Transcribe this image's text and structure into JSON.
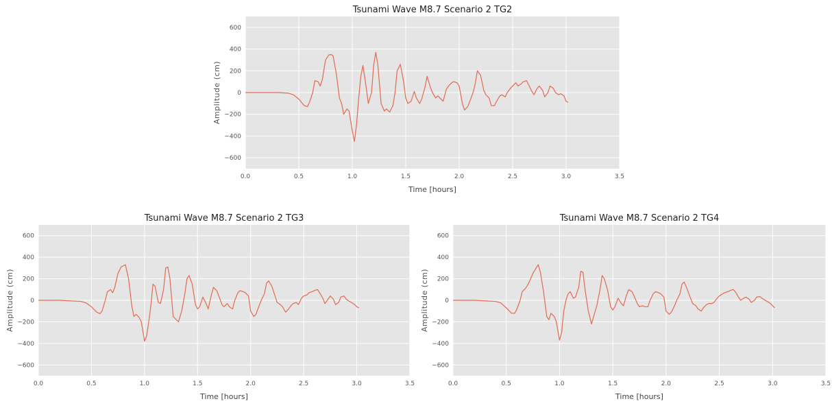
{
  "chart_data": [
    {
      "type": "line",
      "title": "Tsunami Wave M8.7 Scenario 2 TG2",
      "xlabel": "Time [hours]",
      "ylabel": "Amplitude (cm)",
      "xlim": [
        0,
        3.5
      ],
      "ylim": [
        -700,
        700
      ],
      "xticks": [
        "0.0",
        "0.5",
        "1.0",
        "1.5",
        "2.0",
        "2.5",
        "3.0",
        "3.5"
      ],
      "yticks": [
        "600",
        "400",
        "200",
        "0",
        "−200",
        "−400",
        "−600"
      ],
      "grid": true,
      "series": [
        {
          "x": [
            0,
            0.1,
            0.2,
            0.3,
            0.4,
            0.45,
            0.5,
            0.55,
            0.58,
            0.6,
            0.63,
            0.65,
            0.68,
            0.7,
            0.72,
            0.75,
            0.78,
            0.8,
            0.82,
            0.85,
            0.88,
            0.9,
            0.92,
            0.95,
            0.97,
            1.0,
            1.02,
            1.04,
            1.06,
            1.08,
            1.1,
            1.13,
            1.15,
            1.18,
            1.2,
            1.22,
            1.24,
            1.27,
            1.3,
            1.32,
            1.35,
            1.38,
            1.4,
            1.42,
            1.45,
            1.48,
            1.5,
            1.52,
            1.55,
            1.58,
            1.6,
            1.63,
            1.65,
            1.68,
            1.7,
            1.73,
            1.75,
            1.78,
            1.8,
            1.83,
            1.85,
            1.88,
            1.9,
            1.93,
            1.95,
            1.98,
            2.0,
            2.03,
            2.05,
            2.08,
            2.1,
            2.13,
            2.15,
            2.17,
            2.2,
            2.23,
            2.25,
            2.28,
            2.3,
            2.33,
            2.35,
            2.38,
            2.4,
            2.43,
            2.45,
            2.48,
            2.5,
            2.53,
            2.55,
            2.58,
            2.6,
            2.63,
            2.65,
            2.68,
            2.7,
            2.73,
            2.75,
            2.78,
            2.8,
            2.83,
            2.85,
            2.88,
            2.9,
            2.93,
            2.95,
            2.98,
            3.0,
            3.02
          ],
          "y": [
            0,
            0,
            0,
            0,
            -5,
            -20,
            -60,
            -120,
            -130,
            -90,
            0,
            110,
            100,
            60,
            120,
            300,
            345,
            350,
            340,
            180,
            -50,
            -100,
            -200,
            -150,
            -170,
            -350,
            -450,
            -300,
            -50,
            150,
            250,
            50,
            -100,
            0,
            250,
            370,
            250,
            -100,
            -170,
            -150,
            -180,
            -120,
            0,
            200,
            260,
            100,
            -50,
            -100,
            -80,
            10,
            -50,
            -100,
            -60,
            50,
            150,
            50,
            0,
            -50,
            -30,
            -60,
            -80,
            30,
            60,
            90,
            100,
            90,
            60,
            -100,
            -160,
            -130,
            -80,
            0,
            80,
            200,
            160,
            20,
            -20,
            -50,
            -120,
            -120,
            -80,
            -30,
            -20,
            -40,
            0,
            40,
            60,
            90,
            60,
            80,
            100,
            110,
            70,
            10,
            -20,
            40,
            60,
            20,
            -40,
            0,
            60,
            40,
            0,
            -20,
            -10,
            -30,
            -80,
            -90
          ]
        }
      ]
    },
    {
      "type": "line",
      "title": "Tsunami Wave M8.7 Scenario 2 TG3",
      "xlabel": "Time [hours]",
      "ylabel": "Amplitude (cm)",
      "xlim": [
        0,
        3.5
      ],
      "ylim": [
        -700,
        700
      ],
      "xticks": [
        "0.0",
        "0.5",
        "1.0",
        "1.5",
        "2.0",
        "2.5",
        "3.0",
        "3.5"
      ],
      "yticks": [
        "600",
        "400",
        "200",
        "0",
        "−200",
        "−400",
        "−600"
      ],
      "grid": true,
      "series": [
        {
          "x": [
            0,
            0.1,
            0.2,
            0.3,
            0.4,
            0.45,
            0.5,
            0.55,
            0.58,
            0.6,
            0.63,
            0.65,
            0.68,
            0.7,
            0.72,
            0.75,
            0.78,
            0.8,
            0.82,
            0.85,
            0.88,
            0.9,
            0.92,
            0.95,
            0.97,
            1.0,
            1.02,
            1.04,
            1.06,
            1.08,
            1.1,
            1.13,
            1.15,
            1.18,
            1.2,
            1.22,
            1.24,
            1.27,
            1.3,
            1.32,
            1.35,
            1.38,
            1.4,
            1.42,
            1.45,
            1.48,
            1.5,
            1.52,
            1.55,
            1.58,
            1.6,
            1.63,
            1.65,
            1.68,
            1.7,
            1.73,
            1.75,
            1.78,
            1.8,
            1.83,
            1.85,
            1.88,
            1.9,
            1.93,
            1.95,
            1.98,
            2.0,
            2.03,
            2.05,
            2.08,
            2.1,
            2.13,
            2.15,
            2.17,
            2.2,
            2.23,
            2.25,
            2.28,
            2.3,
            2.33,
            2.35,
            2.38,
            2.4,
            2.43,
            2.45,
            2.48,
            2.5,
            2.53,
            2.55,
            2.58,
            2.6,
            2.63,
            2.65,
            2.68,
            2.7,
            2.73,
            2.75,
            2.78,
            2.8,
            2.83,
            2.85,
            2.88,
            2.9,
            2.93,
            2.95,
            2.98,
            3.0,
            3.02
          ],
          "y": [
            0,
            0,
            0,
            -5,
            -10,
            -25,
            -60,
            -110,
            -125,
            -100,
            0,
            80,
            100,
            70,
            120,
            250,
            310,
            320,
            330,
            200,
            -50,
            -150,
            -130,
            -160,
            -200,
            -380,
            -330,
            -200,
            -50,
            150,
            130,
            -20,
            -30,
            100,
            300,
            310,
            200,
            -150,
            -180,
            -200,
            -100,
            60,
            200,
            230,
            150,
            -40,
            -80,
            -60,
            30,
            -30,
            -80,
            50,
            120,
            90,
            40,
            -40,
            -60,
            -30,
            -60,
            -80,
            0,
            70,
            90,
            80,
            70,
            40,
            -100,
            -150,
            -130,
            -50,
            0,
            60,
            160,
            180,
            130,
            40,
            -20,
            -40,
            -60,
            -110,
            -90,
            -50,
            -30,
            -20,
            -40,
            20,
            40,
            50,
            70,
            80,
            90,
            100,
            70,
            20,
            -30,
            10,
            40,
            10,
            -40,
            -20,
            30,
            40,
            10,
            -10,
            -20,
            -40,
            -60,
            -70
          ]
        }
      ]
    },
    {
      "type": "line",
      "title": "Tsunami Wave M8.7 Scenario 2 TG4",
      "xlabel": "Time [hours]",
      "ylabel": "Amplitude (cm)",
      "xlim": [
        0,
        3.5
      ],
      "ylim": [
        -700,
        700
      ],
      "xticks": [
        "0.0",
        "0.5",
        "1.0",
        "1.5",
        "2.0",
        "2.5",
        "3.0",
        "3.5"
      ],
      "yticks": [
        "600",
        "400",
        "200",
        "0",
        "−200",
        "−400",
        "−600"
      ],
      "grid": true,
      "series": [
        {
          "x": [
            0,
            0.1,
            0.2,
            0.3,
            0.4,
            0.45,
            0.5,
            0.55,
            0.58,
            0.6,
            0.63,
            0.65,
            0.68,
            0.7,
            0.72,
            0.75,
            0.78,
            0.8,
            0.82,
            0.85,
            0.88,
            0.9,
            0.92,
            0.95,
            0.97,
            1.0,
            1.02,
            1.04,
            1.06,
            1.08,
            1.1,
            1.13,
            1.15,
            1.18,
            1.2,
            1.22,
            1.24,
            1.27,
            1.3,
            1.32,
            1.35,
            1.38,
            1.4,
            1.42,
            1.45,
            1.48,
            1.5,
            1.52,
            1.55,
            1.58,
            1.6,
            1.63,
            1.65,
            1.68,
            1.7,
            1.73,
            1.75,
            1.78,
            1.8,
            1.83,
            1.85,
            1.88,
            1.9,
            1.93,
            1.95,
            1.98,
            2.0,
            2.03,
            2.05,
            2.08,
            2.1,
            2.13,
            2.15,
            2.17,
            2.2,
            2.23,
            2.25,
            2.28,
            2.3,
            2.33,
            2.35,
            2.38,
            2.4,
            2.43,
            2.45,
            2.48,
            2.5,
            2.53,
            2.55,
            2.58,
            2.6,
            2.63,
            2.65,
            2.68,
            2.7,
            2.73,
            2.75,
            2.78,
            2.8,
            2.83,
            2.85,
            2.88,
            2.9,
            2.93,
            2.95,
            2.98,
            3.0,
            3.02
          ],
          "y": [
            0,
            0,
            0,
            -5,
            -10,
            -25,
            -70,
            -120,
            -120,
            -80,
            0,
            80,
            110,
            140,
            180,
            250,
            300,
            330,
            260,
            80,
            -150,
            -180,
            -120,
            -150,
            -200,
            -370,
            -300,
            -100,
            0,
            60,
            80,
            20,
            30,
            120,
            270,
            260,
            100,
            -100,
            -220,
            -150,
            -50,
            100,
            230,
            200,
            100,
            -60,
            -90,
            -60,
            20,
            -30,
            -50,
            50,
            100,
            80,
            40,
            -30,
            -60,
            -50,
            -60,
            -60,
            0,
            60,
            80,
            70,
            60,
            30,
            -100,
            -130,
            -110,
            -50,
            0,
            60,
            150,
            170,
            100,
            20,
            -30,
            -50,
            -80,
            -100,
            -70,
            -40,
            -30,
            -30,
            -20,
            20,
            40,
            60,
            70,
            80,
            90,
            100,
            80,
            30,
            0,
            20,
            30,
            10,
            -20,
            0,
            30,
            35,
            20,
            0,
            -10,
            -30,
            -50,
            -70
          ]
        }
      ]
    }
  ],
  "colors": {
    "line": "#e2725b",
    "plot_bg": "#e5e5e5",
    "grid": "#ffffff"
  }
}
